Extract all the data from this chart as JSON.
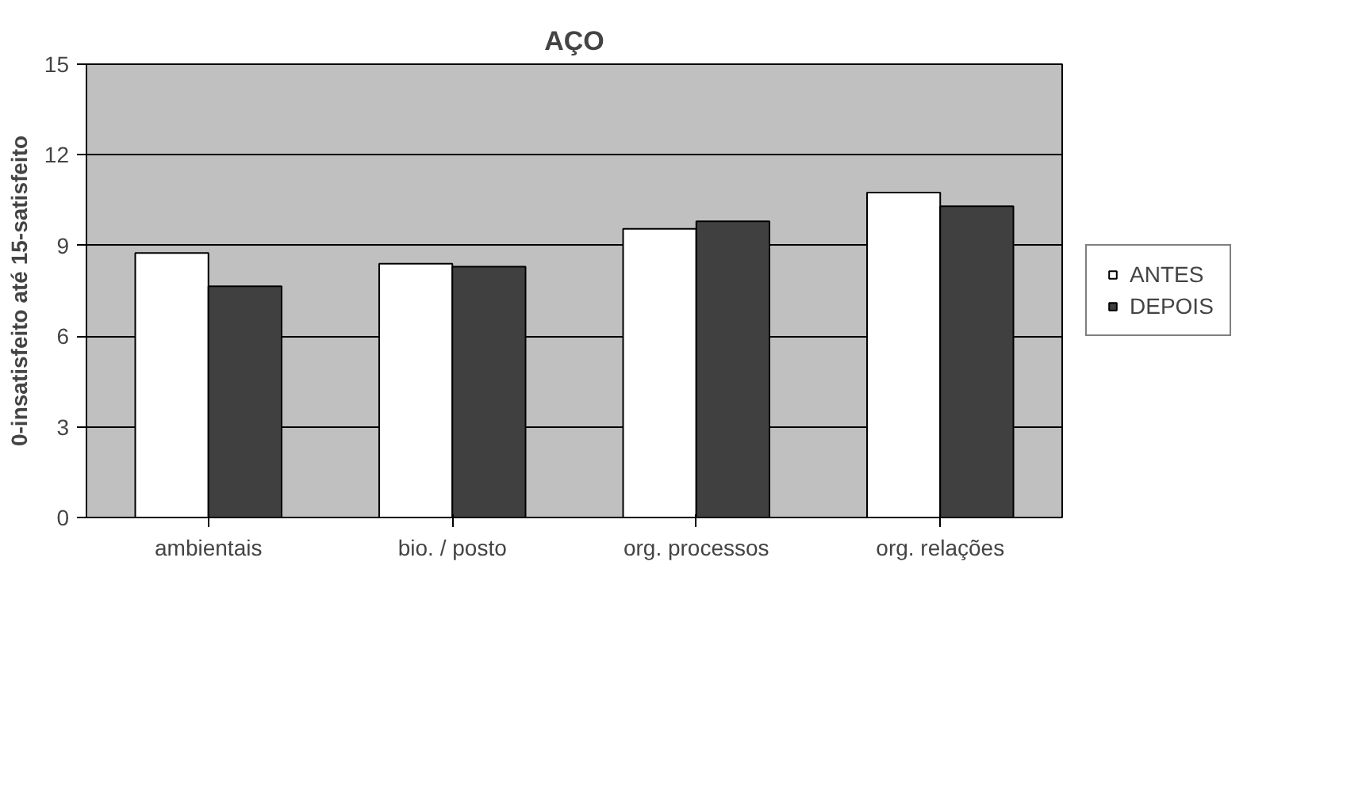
{
  "chart_data": {
    "type": "bar",
    "title": "AÇO",
    "ylabel": "0-insatisfeito até 15-satisfeito",
    "categories": [
      "ambientais",
      "bio. / posto",
      "org. processos",
      "org. relações"
    ],
    "series": [
      {
        "name": "ANTES",
        "color": "#ffffff",
        "values": [
          8.75,
          8.4,
          9.55,
          10.75
        ]
      },
      {
        "name": "DEPOIS",
        "color": "#404040",
        "values": [
          7.65,
          8.3,
          9.8,
          10.3
        ]
      }
    ],
    "ylim": [
      0,
      15
    ],
    "yticks": [
      0,
      3,
      6,
      9,
      12,
      15
    ],
    "grid": "y",
    "legend": "right"
  }
}
